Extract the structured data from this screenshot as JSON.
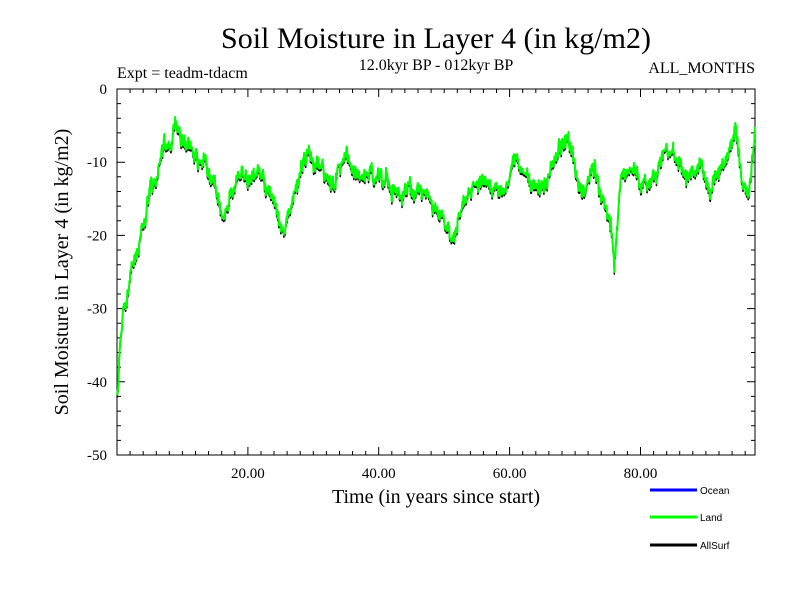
{
  "chart_data": {
    "type": "line",
    "title": "Soil Moisture in Layer 4 (in kg/m2)",
    "subtitle": "12.0kyr BP - 012kyr BP",
    "experiment": "Expt = teadm-tdacm",
    "months": "ALL_MONTHS",
    "xlabel": "Time (in years since start)",
    "ylabel": "Soil Moisture in Layer 4 (in kg/m2)",
    "xlim": [
      0,
      97.5
    ],
    "ylim": [
      -50,
      0
    ],
    "x_ticks": [
      20,
      40,
      60,
      80
    ],
    "x_tick_labels": [
      "20.00",
      "40.00",
      "60.00",
      "80.00"
    ],
    "y_ticks": [
      0,
      -10,
      -20,
      -30,
      -40,
      -50
    ],
    "y_tick_labels": [
      "0",
      "-10",
      "-20",
      "-30",
      "-40",
      "-50"
    ],
    "legend": [
      "Ocean",
      "Land",
      "AllSurf"
    ],
    "legend_position": "bottom-right",
    "colors": {
      "Ocean": "#0000ff",
      "Land": "#00ff00",
      "AllSurf": "#000000"
    },
    "series": [
      {
        "name": "Land",
        "x": [
          0.0,
          0.5,
          1.0,
          1.5,
          2.0,
          3.0,
          4.0,
          5.0,
          6.0,
          7.0,
          8.0,
          9.0,
          10.0,
          11.0,
          12.0,
          13.0,
          14.0,
          15.0,
          16.0,
          18.0,
          20.0,
          22.0,
          24.0,
          25.5,
          27.0,
          29.0,
          31.0,
          33.0,
          35.0,
          37.0,
          40.0,
          43.0,
          46.0,
          49.0,
          51.5,
          53.0,
          55.0,
          57.0,
          59.0,
          61.0,
          63.0,
          65.0,
          67.0,
          69.0,
          71.0,
          73.0,
          74.5,
          75.5,
          76.0,
          77.0,
          79.0,
          81.0,
          83.0,
          85.0,
          87.0,
          89.0,
          91.0,
          93.0,
          94.5,
          95.5,
          96.5,
          97.5
        ],
        "values": [
          -43,
          -35,
          -30,
          -29,
          -26,
          -22,
          -19,
          -13,
          -12,
          -8,
          -7,
          -5,
          -7,
          -8,
          -9,
          -10,
          -11,
          -13,
          -18,
          -13,
          -12,
          -12,
          -15,
          -20,
          -14,
          -9,
          -11,
          -13,
          -9,
          -12,
          -12,
          -14,
          -14,
          -16,
          -21,
          -15,
          -12,
          -13,
          -14,
          -9,
          -12,
          -14,
          -9,
          -7,
          -14,
          -10,
          -15,
          -18,
          -24,
          -12,
          -11,
          -14,
          -11,
          -8,
          -12,
          -11,
          -13,
          -10,
          -5,
          -13,
          -14,
          -7
        ]
      },
      {
        "name": "AllSurf",
        "x": [
          0.0,
          0.5,
          1.0,
          1.5,
          2.0,
          3.0,
          4.0,
          5.0,
          6.0,
          7.0,
          8.0,
          9.0,
          10.0,
          11.0,
          12.0,
          13.0,
          14.0,
          15.0,
          16.0,
          18.0,
          20.0,
          22.0,
          24.0,
          25.5,
          27.0,
          29.0,
          31.0,
          33.0,
          35.0,
          37.0,
          40.0,
          43.0,
          46.0,
          49.0,
          51.5,
          53.0,
          55.0,
          57.0,
          59.0,
          61.0,
          63.0,
          65.0,
          67.0,
          69.0,
          71.0,
          73.0,
          74.5,
          75.5,
          76.0,
          77.0,
          79.0,
          81.0,
          83.0,
          85.0,
          87.0,
          89.0,
          91.0,
          93.0,
          94.5,
          95.5,
          96.5,
          97.5
        ],
        "values": [
          -43.3,
          -35.3,
          -30.3,
          -29.3,
          -26.3,
          -22.3,
          -19.3,
          -13.3,
          -12.3,
          -8.3,
          -7.3,
          -5.3,
          -7.3,
          -8.3,
          -9.3,
          -10.3,
          -11.3,
          -13.3,
          -18.3,
          -13.3,
          -12.3,
          -12.3,
          -15.3,
          -20.3,
          -14.3,
          -9.3,
          -11.3,
          -13.3,
          -9.3,
          -12.3,
          -12.3,
          -14.3,
          -14.3,
          -16.3,
          -21.3,
          -15.3,
          -12.3,
          -13.3,
          -14.3,
          -9.3,
          -12.3,
          -14.3,
          -9.3,
          -7.3,
          -14.3,
          -10.3,
          -15.3,
          -18.3,
          -24.3,
          -12.3,
          -11.3,
          -14.3,
          -11.3,
          -8.3,
          -12.3,
          -11.3,
          -13.3,
          -10.3,
          -5.3,
          -13.3,
          -14.3,
          -7.3
        ]
      }
    ]
  }
}
